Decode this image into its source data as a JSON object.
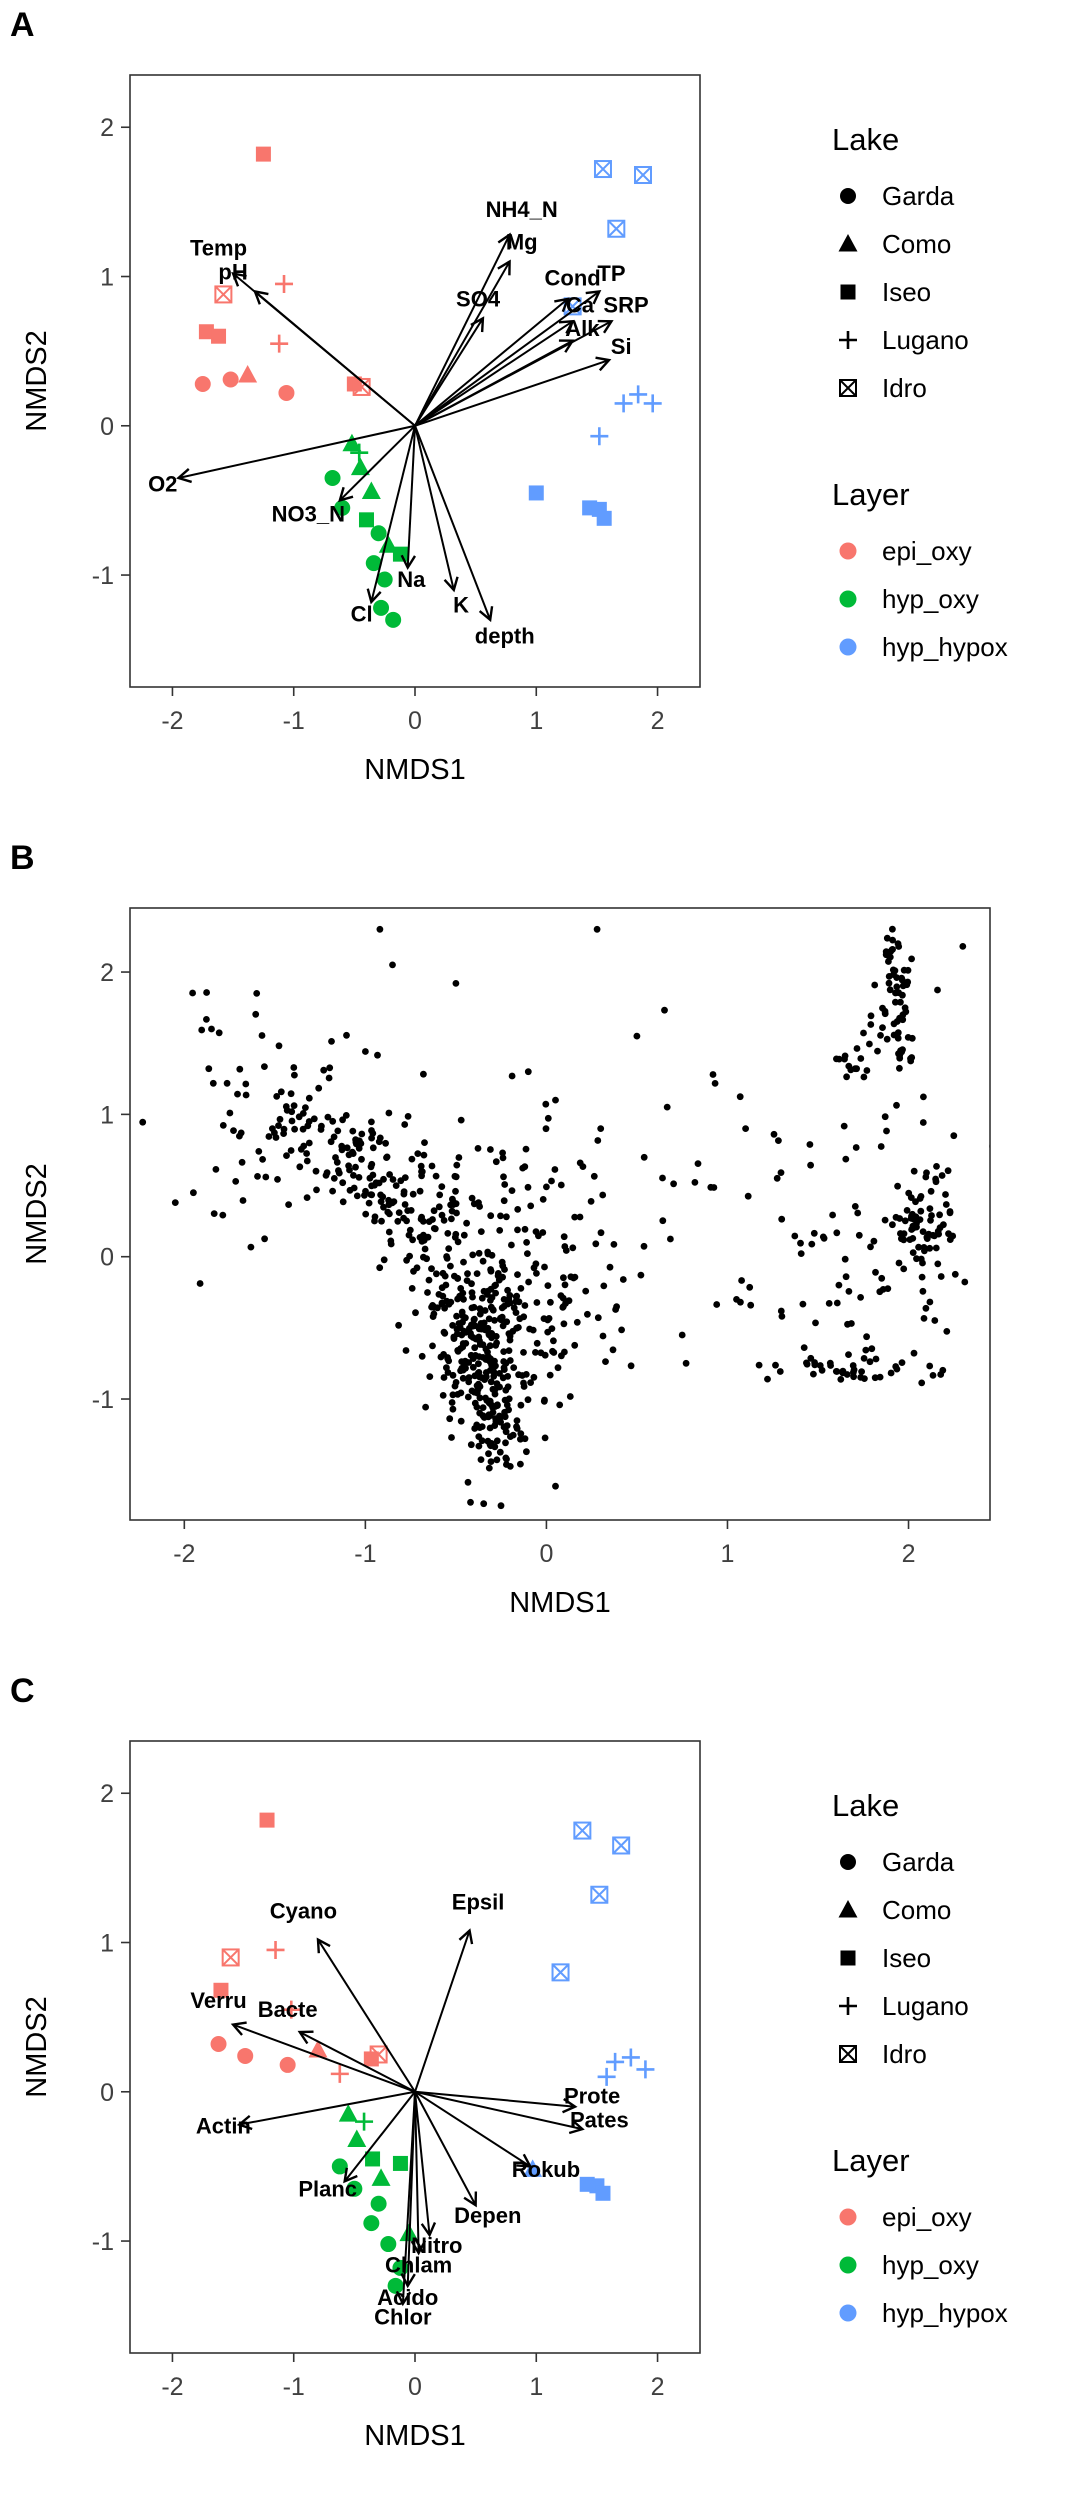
{
  "figure": {
    "background": "#ffffff",
    "shape_by_lake": {
      "Garda": "circle",
      "Como": "triangle",
      "Iseo": "square",
      "Lugano": "plus",
      "Idro": "square-x"
    },
    "color_by_layer": {
      "epi_oxy": "#F8766D",
      "hyp_oxy": "#00BA38",
      "hyp_hypox": "#619CFF"
    },
    "legend": {
      "lake": {
        "title": "Lake",
        "items": [
          {
            "label": "Garda",
            "shape": "circle"
          },
          {
            "label": "Como",
            "shape": "triangle"
          },
          {
            "label": "Iseo",
            "shape": "square"
          },
          {
            "label": "Lugano",
            "shape": "plus"
          },
          {
            "label": "Idro",
            "shape": "square-x"
          }
        ]
      },
      "layer": {
        "title": "Layer",
        "items": [
          {
            "label": "epi_oxy",
            "color": "#F8766D"
          },
          {
            "label": "hyp_oxy",
            "color": "#00BA38"
          },
          {
            "label": "hyp_hypox",
            "color": "#619CFF"
          }
        ]
      }
    }
  },
  "chart_data": [
    {
      "id": "A",
      "panel_label": "A",
      "type": "scatter",
      "xlabel": "NMDS1",
      "ylabel": "NMDS2",
      "xlim": [
        -2.35,
        2.35
      ],
      "ylim": [
        -1.75,
        2.35
      ],
      "xticks": [
        -2,
        -1,
        0,
        1,
        2
      ],
      "yticks": [
        -1,
        0,
        1,
        2
      ],
      "show_legend": true,
      "points": [
        {
          "lake": "Iseo",
          "layer": "epi_oxy",
          "x": -1.25,
          "y": 1.82
        },
        {
          "lake": "Idro",
          "layer": "epi_oxy",
          "x": -1.58,
          "y": 0.88
        },
        {
          "lake": "Lugano",
          "layer": "epi_oxy",
          "x": -1.08,
          "y": 0.95
        },
        {
          "lake": "Iseo",
          "layer": "epi_oxy",
          "x": -1.72,
          "y": 0.63
        },
        {
          "lake": "Iseo",
          "layer": "epi_oxy",
          "x": -1.62,
          "y": 0.6
        },
        {
          "lake": "Lugano",
          "layer": "epi_oxy",
          "x": -1.12,
          "y": 0.55
        },
        {
          "lake": "Garda",
          "layer": "epi_oxy",
          "x": -1.75,
          "y": 0.28
        },
        {
          "lake": "Garda",
          "layer": "epi_oxy",
          "x": -1.52,
          "y": 0.31
        },
        {
          "lake": "Como",
          "layer": "epi_oxy",
          "x": -1.38,
          "y": 0.34
        },
        {
          "lake": "Garda",
          "layer": "epi_oxy",
          "x": -1.06,
          "y": 0.22
        },
        {
          "lake": "Iseo",
          "layer": "epi_oxy",
          "x": -0.5,
          "y": 0.28
        },
        {
          "lake": "Idro",
          "layer": "epi_oxy",
          "x": -0.44,
          "y": 0.26
        },
        {
          "lake": "Como",
          "layer": "hyp_oxy",
          "x": -0.52,
          "y": -0.12
        },
        {
          "lake": "Lugano",
          "layer": "hyp_oxy",
          "x": -0.46,
          "y": -0.18
        },
        {
          "lake": "Como",
          "layer": "hyp_oxy",
          "x": -0.45,
          "y": -0.28
        },
        {
          "lake": "Garda",
          "layer": "hyp_oxy",
          "x": -0.68,
          "y": -0.35
        },
        {
          "lake": "Como",
          "layer": "hyp_oxy",
          "x": -0.36,
          "y": -0.44
        },
        {
          "lake": "Garda",
          "layer": "hyp_oxy",
          "x": -0.6,
          "y": -0.55
        },
        {
          "lake": "Iseo",
          "layer": "hyp_oxy",
          "x": -0.4,
          "y": -0.63
        },
        {
          "lake": "Garda",
          "layer": "hyp_oxy",
          "x": -0.3,
          "y": -0.72
        },
        {
          "lake": "Como",
          "layer": "hyp_oxy",
          "x": -0.22,
          "y": -0.8
        },
        {
          "lake": "Iseo",
          "layer": "hyp_oxy",
          "x": -0.12,
          "y": -0.86
        },
        {
          "lake": "Garda",
          "layer": "hyp_oxy",
          "x": -0.34,
          "y": -0.92
        },
        {
          "lake": "Garda",
          "layer": "hyp_oxy",
          "x": -0.25,
          "y": -1.03
        },
        {
          "lake": "Garda",
          "layer": "hyp_oxy",
          "x": -0.28,
          "y": -1.22
        },
        {
          "lake": "Garda",
          "layer": "hyp_oxy",
          "x": -0.18,
          "y": -1.3
        },
        {
          "lake": "Idro",
          "layer": "hyp_hypox",
          "x": 1.55,
          "y": 1.72
        },
        {
          "lake": "Idro",
          "layer": "hyp_hypox",
          "x": 1.88,
          "y": 1.68
        },
        {
          "lake": "Idro",
          "layer": "hyp_hypox",
          "x": 1.66,
          "y": 1.32
        },
        {
          "lake": "Idro",
          "layer": "hyp_hypox",
          "x": 1.3,
          "y": 0.8
        },
        {
          "lake": "Lugano",
          "layer": "hyp_hypox",
          "x": 1.72,
          "y": 0.15
        },
        {
          "lake": "Lugano",
          "layer": "hyp_hypox",
          "x": 1.84,
          "y": 0.21
        },
        {
          "lake": "Lugano",
          "layer": "hyp_hypox",
          "x": 1.96,
          "y": 0.15
        },
        {
          "lake": "Lugano",
          "layer": "hyp_hypox",
          "x": 1.52,
          "y": -0.07
        },
        {
          "lake": "Iseo",
          "layer": "hyp_hypox",
          "x": 1.0,
          "y": -0.45
        },
        {
          "lake": "Iseo",
          "layer": "hyp_hypox",
          "x": 1.44,
          "y": -0.55
        },
        {
          "lake": "Iseo",
          "layer": "hyp_hypox",
          "x": 1.52,
          "y": -0.56
        },
        {
          "lake": "Iseo",
          "layer": "hyp_hypox",
          "x": 1.56,
          "y": -0.62
        }
      ],
      "arrows": [
        {
          "label": "Temp",
          "x": -1.5,
          "y": 1.02,
          "lx": -1.62,
          "ly": 1.14
        },
        {
          "label": "pH",
          "x": -1.32,
          "y": 0.9,
          "lx": -1.5,
          "ly": 0.98
        },
        {
          "label": "NH4_N",
          "x": 0.78,
          "y": 1.28,
          "lx": 0.88,
          "ly": 1.4
        },
        {
          "label": "Mg",
          "x": 0.78,
          "y": 1.1,
          "lx": 0.88,
          "ly": 1.18
        },
        {
          "label": "Cond",
          "x": 1.26,
          "y": 0.85,
          "lx": 1.3,
          "ly": 0.94
        },
        {
          "label": "TP",
          "x": 1.52,
          "y": 0.9,
          "lx": 1.62,
          "ly": 0.97
        },
        {
          "label": "SO4",
          "x": 0.56,
          "y": 0.72,
          "lx": 0.52,
          "ly": 0.8
        },
        {
          "label": "Ca",
          "x": 1.3,
          "y": 0.7,
          "lx": 1.36,
          "ly": 0.76
        },
        {
          "label": "SRP",
          "x": 1.62,
          "y": 0.7,
          "lx": 1.74,
          "ly": 0.76
        },
        {
          "label": "Alk",
          "x": 1.3,
          "y": 0.57,
          "lx": 1.38,
          "ly": 0.6
        },
        {
          "label": "Si",
          "x": 1.6,
          "y": 0.44,
          "lx": 1.7,
          "ly": 0.48
        },
        {
          "label": "O2",
          "x": -1.95,
          "y": -0.35,
          "lx": -2.08,
          "ly": -0.44
        },
        {
          "label": "NO3_N",
          "x": -0.62,
          "y": -0.5,
          "lx": -0.88,
          "ly": -0.64
        },
        {
          "label": "Na",
          "x": -0.06,
          "y": -0.95,
          "lx": -0.03,
          "ly": -1.08
        },
        {
          "label": "Cl",
          "x": -0.36,
          "y": -1.18,
          "lx": -0.44,
          "ly": -1.31
        },
        {
          "label": "K",
          "x": 0.32,
          "y": -1.1,
          "lx": 0.38,
          "ly": -1.25
        },
        {
          "label": "depth",
          "x": 0.62,
          "y": -1.3,
          "lx": 0.74,
          "ly": -1.46
        }
      ]
    },
    {
      "id": "B",
      "panel_label": "B",
      "type": "scatter",
      "xlabel": "NMDS1",
      "ylabel": "NMDS2",
      "xlim": [
        -2.3,
        2.45
      ],
      "ylim": [
        -1.85,
        2.45
      ],
      "xticks": [
        -2,
        -1,
        0,
        1,
        2
      ],
      "yticks": [
        -1,
        0,
        1,
        2
      ],
      "show_legend": false,
      "point_color": "#000000",
      "point_clusters": [
        {
          "type": "gauss",
          "cx": -1.45,
          "cy": 0.95,
          "sx": 0.33,
          "sy": 0.4,
          "n": 70,
          "seed": 11
        },
        {
          "type": "line",
          "x1": -1.35,
          "y1": 1.05,
          "x2": -0.35,
          "y2": -0.35,
          "jx": 0.13,
          "jy": 0.13,
          "n": 160,
          "seed": 12
        },
        {
          "type": "gauss",
          "cx": -0.7,
          "cy": 0.35,
          "sx": 0.25,
          "sy": 0.3,
          "n": 60,
          "seed": 13
        },
        {
          "type": "gauss",
          "cx": -0.32,
          "cy": -0.7,
          "sx": 0.15,
          "sy": 0.38,
          "n": 220,
          "seed": 14
        },
        {
          "type": "line",
          "x1": -0.5,
          "y1": -0.3,
          "x2": -0.22,
          "y2": -1.55,
          "jx": 0.07,
          "jy": 0.1,
          "n": 90,
          "seed": 15
        },
        {
          "type": "gauss",
          "cx": 0.05,
          "cy": -0.45,
          "sx": 0.18,
          "sy": 0.3,
          "n": 50,
          "seed": 16
        },
        {
          "type": "gauss",
          "cx": 0.4,
          "cy": 0.3,
          "sx": 0.45,
          "sy": 0.7,
          "n": 45,
          "seed": 17
        },
        {
          "type": "line",
          "x1": 1.9,
          "y1": 2.25,
          "x2": 1.98,
          "y2": 1.35,
          "jx": 0.04,
          "jy": 0.05,
          "n": 45,
          "seed": 18
        },
        {
          "type": "line",
          "x1": 1.7,
          "y1": 1.3,
          "x2": 2.0,
          "y2": 2.05,
          "jx": 0.05,
          "jy": 0.06,
          "n": 35,
          "seed": 19
        },
        {
          "type": "gauss",
          "cx": 2.08,
          "cy": 0.18,
          "sx": 0.1,
          "sy": 0.22,
          "n": 70,
          "seed": 20
        },
        {
          "type": "gauss",
          "cx": 1.75,
          "cy": 0.55,
          "sx": 0.28,
          "sy": 0.45,
          "n": 40,
          "seed": 21
        },
        {
          "type": "line",
          "x1": 1.35,
          "y1": -0.8,
          "x2": 2.1,
          "y2": -0.78,
          "jx": 0.1,
          "jy": 0.05,
          "n": 40,
          "seed": 22
        },
        {
          "type": "gauss",
          "cx": 1.55,
          "cy": -0.35,
          "sx": 0.3,
          "sy": 0.3,
          "n": 30,
          "seed": 23
        },
        {
          "type": "gauss",
          "cx": -0.15,
          "cy": 0.35,
          "sx": 0.3,
          "sy": 0.35,
          "n": 40,
          "seed": 24
        }
      ],
      "points_extra": [
        [
          -0.92,
          2.3
        ],
        [
          -0.85,
          2.05
        ],
        [
          -0.5,
          1.92
        ],
        [
          0.28,
          2.3
        ],
        [
          0.5,
          1.55
        ],
        [
          0.92,
          1.28
        ],
        [
          1.1,
          0.9
        ],
        [
          0.75,
          -0.55
        ],
        [
          1.05,
          -0.3
        ],
        [
          -1.95,
          0.45
        ],
        [
          -2.05,
          0.38
        ],
        [
          -1.85,
          1.6
        ],
        [
          -1.6,
          1.85
        ],
        [
          2.3,
          2.18
        ],
        [
          2.25,
          0.85
        ],
        [
          0.05,
          1.1
        ],
        [
          0.3,
          0.9
        ],
        [
          -0.1,
          1.3
        ]
      ]
    },
    {
      "id": "C",
      "panel_label": "C",
      "type": "scatter",
      "xlabel": "NMDS1",
      "ylabel": "NMDS2",
      "xlim": [
        -2.35,
        2.35
      ],
      "ylim": [
        -1.75,
        2.35
      ],
      "xticks": [
        -2,
        -1,
        0,
        1,
        2
      ],
      "yticks": [
        -1,
        0,
        1,
        2
      ],
      "show_legend": true,
      "points": [
        {
          "lake": "Iseo",
          "layer": "epi_oxy",
          "x": -1.22,
          "y": 1.82
        },
        {
          "lake": "Idro",
          "layer": "epi_oxy",
          "x": -1.52,
          "y": 0.9
        },
        {
          "lake": "Lugano",
          "layer": "epi_oxy",
          "x": -1.15,
          "y": 0.95
        },
        {
          "lake": "Iseo",
          "layer": "epi_oxy",
          "x": -1.6,
          "y": 0.68
        },
        {
          "lake": "Lugano",
          "layer": "epi_oxy",
          "x": -1.02,
          "y": 0.55
        },
        {
          "lake": "Garda",
          "layer": "epi_oxy",
          "x": -1.62,
          "y": 0.32
        },
        {
          "lake": "Garda",
          "layer": "epi_oxy",
          "x": -1.4,
          "y": 0.24
        },
        {
          "lake": "Como",
          "layer": "epi_oxy",
          "x": -0.8,
          "y": 0.28
        },
        {
          "lake": "Lugano",
          "layer": "epi_oxy",
          "x": -0.62,
          "y": 0.12
        },
        {
          "lake": "Iseo",
          "layer": "epi_oxy",
          "x": -0.36,
          "y": 0.22
        },
        {
          "lake": "Idro",
          "layer": "epi_oxy",
          "x": -0.3,
          "y": 0.25
        },
        {
          "lake": "Garda",
          "layer": "epi_oxy",
          "x": -1.05,
          "y": 0.18
        },
        {
          "lake": "Como",
          "layer": "hyp_oxy",
          "x": -0.55,
          "y": -0.15
        },
        {
          "lake": "Lugano",
          "layer": "hyp_oxy",
          "x": -0.42,
          "y": -0.2
        },
        {
          "lake": "Como",
          "layer": "hyp_oxy",
          "x": -0.48,
          "y": -0.32
        },
        {
          "lake": "Garda",
          "layer": "hyp_oxy",
          "x": -0.62,
          "y": -0.5
        },
        {
          "lake": "Iseo",
          "layer": "hyp_oxy",
          "x": -0.35,
          "y": -0.45
        },
        {
          "lake": "Como",
          "layer": "hyp_oxy",
          "x": -0.28,
          "y": -0.58
        },
        {
          "lake": "Garda",
          "layer": "hyp_oxy",
          "x": -0.5,
          "y": -0.65
        },
        {
          "lake": "Iseo",
          "layer": "hyp_oxy",
          "x": -0.12,
          "y": -0.48
        },
        {
          "lake": "Garda",
          "layer": "hyp_oxy",
          "x": -0.3,
          "y": -0.75
        },
        {
          "lake": "Garda",
          "layer": "hyp_oxy",
          "x": -0.36,
          "y": -0.88
        },
        {
          "lake": "Como",
          "layer": "hyp_oxy",
          "x": -0.05,
          "y": -0.95
        },
        {
          "lake": "Garda",
          "layer": "hyp_oxy",
          "x": -0.22,
          "y": -1.02
        },
        {
          "lake": "Garda",
          "layer": "hyp_oxy",
          "x": -0.12,
          "y": -1.18
        },
        {
          "lake": "Garda",
          "layer": "hyp_oxy",
          "x": -0.16,
          "y": -1.3
        },
        {
          "lake": "Idro",
          "layer": "hyp_hypox",
          "x": 1.38,
          "y": 1.75
        },
        {
          "lake": "Idro",
          "layer": "hyp_hypox",
          "x": 1.7,
          "y": 1.65
        },
        {
          "lake": "Idro",
          "layer": "hyp_hypox",
          "x": 1.52,
          "y": 1.32
        },
        {
          "lake": "Idro",
          "layer": "hyp_hypox",
          "x": 1.2,
          "y": 0.8
        },
        {
          "lake": "Lugano",
          "layer": "hyp_hypox",
          "x": 1.65,
          "y": 0.2
        },
        {
          "lake": "Lugano",
          "layer": "hyp_hypox",
          "x": 1.78,
          "y": 0.23
        },
        {
          "lake": "Lugano",
          "layer": "hyp_hypox",
          "x": 1.9,
          "y": 0.15
        },
        {
          "lake": "Lugano",
          "layer": "hyp_hypox",
          "x": 1.58,
          "y": 0.1
        },
        {
          "lake": "Como",
          "layer": "hyp_hypox",
          "x": 0.97,
          "y": -0.52
        },
        {
          "lake": "Iseo",
          "layer": "hyp_hypox",
          "x": 1.42,
          "y": -0.62
        },
        {
          "lake": "Iseo",
          "layer": "hyp_hypox",
          "x": 1.5,
          "y": -0.63
        },
        {
          "lake": "Iseo",
          "layer": "hyp_hypox",
          "x": 1.55,
          "y": -0.68
        }
      ],
      "arrows": [
        {
          "label": "Cyano",
          "x": -0.8,
          "y": 1.02,
          "lx": -0.92,
          "ly": 1.16
        },
        {
          "label": "Epsil",
          "x": 0.45,
          "y": 1.08,
          "lx": 0.52,
          "ly": 1.22
        },
        {
          "label": "Verru",
          "x": -1.5,
          "y": 0.45,
          "lx": -1.62,
          "ly": 0.56
        },
        {
          "label": "Bacte",
          "x": -0.95,
          "y": 0.4,
          "lx": -1.05,
          "ly": 0.5
        },
        {
          "label": "Actin",
          "x": -1.45,
          "y": -0.22,
          "lx": -1.58,
          "ly": -0.28
        },
        {
          "label": "Planc",
          "x": -0.58,
          "y": -0.6,
          "lx": -0.72,
          "ly": -0.7
        },
        {
          "label": "Prote",
          "x": 1.32,
          "y": -0.1,
          "lx": 1.46,
          "ly": -0.08
        },
        {
          "label": "Pates",
          "x": 1.38,
          "y": -0.25,
          "lx": 1.52,
          "ly": -0.24
        },
        {
          "label": "Rokub",
          "x": 0.95,
          "y": -0.5,
          "lx": 1.08,
          "ly": -0.57
        },
        {
          "label": "Depen",
          "x": 0.5,
          "y": -0.76,
          "lx": 0.6,
          "ly": -0.88
        },
        {
          "label": "Nitro",
          "x": 0.12,
          "y": -0.96,
          "lx": 0.18,
          "ly": -1.08
        },
        {
          "label": "Chlam",
          "x": 0.03,
          "y": -1.08,
          "lx": 0.03,
          "ly": -1.21
        },
        {
          "label": "Acido",
          "x": -0.06,
          "y": -1.3,
          "lx": -0.06,
          "ly": -1.43
        },
        {
          "label": "Chlor",
          "x": -0.1,
          "y": -1.42,
          "lx": -0.1,
          "ly": -1.56
        }
      ]
    }
  ]
}
